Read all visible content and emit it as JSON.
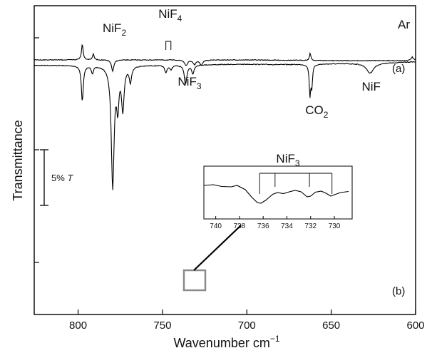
{
  "chart_data": {
    "type": "line",
    "xlabel": "Wavenumber cm",
    "xlabel_sup": "−1",
    "ylabel": "Transmittance",
    "xlim": [
      826,
      600
    ],
    "x_ticks": [
      800,
      750,
      700,
      650,
      600
    ],
    "x_tick_labels": [
      "800",
      "750",
      "700",
      "650",
      "600"
    ],
    "matrix_label": "Ar",
    "scale_bar": {
      "label": "5% ",
      "label_italic": "T",
      "percent": 5
    },
    "series": [
      {
        "name": "(a)",
        "baseline": 91.5,
        "noise": 0.25,
        "drift": [
          [
            826,
            91.5
          ],
          [
            760,
            91.5
          ],
          [
            700,
            90.0
          ],
          [
            680,
            90.5
          ],
          [
            620,
            88.2
          ],
          [
            600,
            86.5
          ]
        ],
        "bands": [
          {
            "x": 797.5,
            "depth": 50,
            "width": 0.7
          },
          {
            "x": 791.5,
            "depth": 10,
            "width": 0.7
          },
          {
            "x": 779.5,
            "depth": 170,
            "width": 1.0
          },
          {
            "x": 776.5,
            "depth": 52,
            "width": 0.8
          },
          {
            "x": 773.5,
            "depth": 60,
            "width": 0.9
          },
          {
            "x": 769,
            "depth": 22,
            "width": 0.8
          },
          {
            "x": 748,
            "depth": 10,
            "width": 0.8
          },
          {
            "x": 745,
            "depth": 6,
            "width": 0.8
          },
          {
            "x": 736.3,
            "depth": 26,
            "width": 0.9
          },
          {
            "x": 732,
            "depth": 12,
            "width": 0.8
          },
          {
            "x": 662.6,
            "depth": 42,
            "width": 0.5
          },
          {
            "x": 661.5,
            "depth": 30,
            "width": 0.5
          },
          {
            "x": 627,
            "depth": 14,
            "width": 2.5
          }
        ]
      },
      {
        "name": "(b)",
        "baseline": 84,
        "noise": 0.25,
        "drift": [
          [
            826,
            84
          ],
          [
            700,
            84
          ],
          [
            650,
            85
          ],
          [
            600,
            85
          ]
        ],
        "bands": [
          {
            "x": 797.5,
            "depth": -22,
            "width": 0.6
          },
          {
            "x": 791,
            "depth": -8,
            "width": 0.6
          },
          {
            "x": 779.5,
            "depth": 16,
            "width": 0.8
          },
          {
            "x": 736,
            "depth": 8,
            "width": 1.0
          },
          {
            "x": 731,
            "depth": 6,
            "width": 1.0
          },
          {
            "x": 727,
            "depth": 7,
            "width": 1.0
          },
          {
            "x": 662.5,
            "depth": -10,
            "width": 0.5
          },
          {
            "x": 602,
            "depth": -5,
            "width": 0.8
          }
        ]
      }
    ],
    "annotations": [
      {
        "base": "NiF",
        "sub": "2",
        "x": 777
      },
      {
        "base": "NiF",
        "sub": "4",
        "x": 746.5,
        "bracket": [
          748,
          745
        ]
      },
      {
        "base": "NiF",
        "sub": "3",
        "x": 735
      },
      {
        "base": "CO",
        "sub": "2",
        "x": 662
      },
      {
        "base": "NiF",
        "sub": "",
        "x": 626
      }
    ],
    "inset": {
      "xlim": [
        741,
        728.5
      ],
      "x_ticks": [
        740,
        738,
        736,
        734,
        732,
        730
      ],
      "x_tick_labels": [
        "740",
        "738",
        "736",
        "734",
        "732",
        "730"
      ],
      "label_base": "NiF",
      "label_sub": "3",
      "markers": [
        736.3,
        735,
        732.1,
        730.2
      ],
      "source_range": [
        738.5,
        728.5
      ],
      "points": [
        [
          741,
          0.3
        ],
        [
          740.2,
          0.28
        ],
        [
          739.5,
          0.33
        ],
        [
          738.7,
          0.34
        ],
        [
          738.2,
          0.3
        ],
        [
          737.5,
          0.42
        ],
        [
          737,
          0.62
        ],
        [
          736.5,
          0.78
        ],
        [
          736.2,
          0.8
        ],
        [
          735.8,
          0.72
        ],
        [
          735.2,
          0.55
        ],
        [
          734.8,
          0.5
        ],
        [
          734.3,
          0.53
        ],
        [
          733.8,
          0.48
        ],
        [
          733.3,
          0.44
        ],
        [
          732.8,
          0.48
        ],
        [
          732.3,
          0.62
        ],
        [
          732.0,
          0.6
        ],
        [
          731.6,
          0.49
        ],
        [
          731.1,
          0.46
        ],
        [
          730.7,
          0.52
        ],
        [
          730.3,
          0.6
        ],
        [
          729.9,
          0.55
        ],
        [
          729.5,
          0.5
        ],
        [
          728.8,
          0.47
        ]
      ]
    }
  }
}
